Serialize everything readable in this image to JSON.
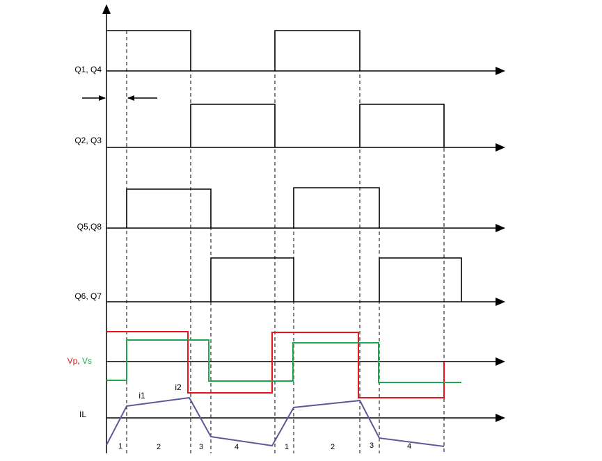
{
  "signals": [
    {
      "label": "Q1, Q4"
    },
    {
      "label": "Q2, Q3"
    },
    {
      "label": "Q5,Q8"
    },
    {
      "label": "Q6, Q7"
    }
  ],
  "vpvs": {
    "vp_label": "Vp",
    "separator": ", ",
    "vs_label": "Vs"
  },
  "il": {
    "label": "IL",
    "i1_label": "i1",
    "i2_label": "i2"
  },
  "intervals": [
    "1",
    "2",
    "3",
    "4",
    "1",
    "2",
    "3",
    "4"
  ],
  "colors": {
    "vp": "#e8141b",
    "vs": "#1aa84a",
    "il": "#5a5a9a",
    "annot": "#3a8fd0",
    "line": "#000000"
  }
}
